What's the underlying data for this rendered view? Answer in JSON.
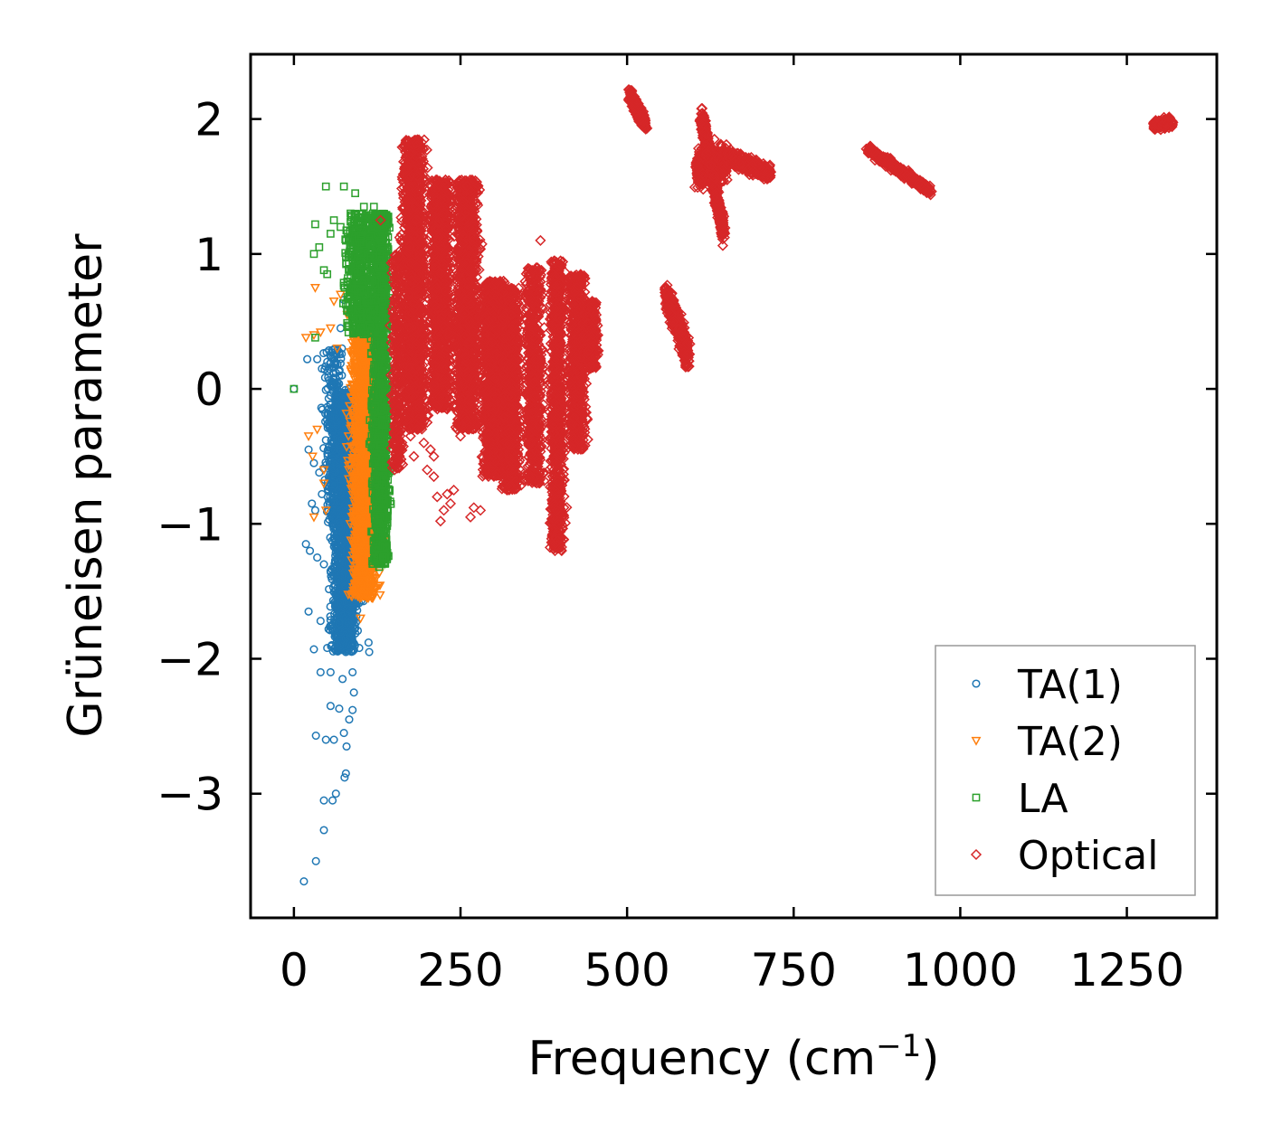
{
  "chart_data": {
    "type": "scatter",
    "title": "",
    "xlabel_main": "Frequency (cm",
    "xlabel_sup": "−1",
    "xlabel_end": ")",
    "ylabel": "Grüneisen parameter",
    "xlim": [
      -65,
      1385
    ],
    "ylim": [
      -3.92,
      2.48
    ],
    "x_ticks": [
      0,
      250,
      500,
      750,
      1000,
      1250
    ],
    "x_tick_labels": [
      "0",
      "250",
      "500",
      "750",
      "1000",
      "1250"
    ],
    "y_ticks": [
      -3,
      -2,
      -1,
      0,
      1,
      2
    ],
    "y_tick_labels": [
      "−3",
      "−2",
      "−1",
      "0",
      "1",
      "2"
    ],
    "legend_position": "lower-right",
    "series": [
      {
        "name": "TA(1)",
        "marker": "circle",
        "color": "#1f77b4",
        "points": [
          [
            0,
            0
          ],
          [
            15,
            -3.65
          ],
          [
            33,
            -3.5
          ],
          [
            45,
            -3.27
          ],
          [
            45,
            -3.05
          ],
          [
            63,
            -3.0
          ],
          [
            58,
            -3.05
          ],
          [
            76,
            -2.88
          ],
          [
            78,
            -2.85
          ],
          [
            33,
            -2.57
          ],
          [
            48,
            -2.6
          ],
          [
            60,
            -2.6
          ],
          [
            75,
            -2.55
          ],
          [
            79,
            -2.65
          ],
          [
            55,
            -2.35
          ],
          [
            68,
            -2.37
          ],
          [
            83,
            -2.45
          ],
          [
            88,
            -2.38
          ],
          [
            40,
            -2.1
          ],
          [
            55,
            -2.1
          ],
          [
            73,
            -2.15
          ],
          [
            88,
            -2.1
          ],
          [
            90,
            -2.25
          ],
          [
            30,
            -1.93
          ],
          [
            50,
            -1.92
          ],
          [
            65,
            -1.9
          ],
          [
            78,
            -1.95
          ],
          [
            98,
            -1.92
          ],
          [
            113,
            -1.95
          ],
          [
            22,
            -1.65
          ],
          [
            40,
            -1.72
          ],
          [
            52,
            -1.78
          ],
          [
            70,
            -1.8
          ],
          [
            112,
            -1.88
          ],
          [
            18,
            -1.15
          ],
          [
            24,
            -1.2
          ],
          [
            35,
            -1.25
          ],
          [
            45,
            -1.3
          ],
          [
            55,
            -1.35
          ],
          [
            27,
            -0.85
          ],
          [
            32,
            -0.9
          ],
          [
            38,
            -0.62
          ],
          [
            42,
            -0.78
          ],
          [
            22,
            -0.45
          ],
          [
            30,
            -0.55
          ],
          [
            48,
            -0.38
          ],
          [
            52,
            -0.15
          ],
          [
            55,
            -0.05
          ],
          [
            65,
            0.05
          ],
          [
            72,
            0.1
          ],
          [
            50,
            0.2
          ],
          [
            60,
            0.22
          ],
          [
            72,
            0.3
          ],
          [
            70,
            0.45
          ],
          [
            75,
            0.66
          ],
          [
            20,
            0.22
          ],
          [
            35,
            0.22
          ],
          [
            42,
            0.15
          ],
          [
            63,
            0.12
          ]
        ],
        "clusters": [
          {
            "x_center": 75,
            "x_spread": 28,
            "y_min": -1.95,
            "y_max": 0.0,
            "count": 1500
          },
          {
            "x_center": 90,
            "x_spread": 18,
            "y_min": -1.6,
            "y_max": -0.5,
            "count": 600
          },
          {
            "x_center": 60,
            "x_spread": 22,
            "y_min": -1.0,
            "y_max": 0.3,
            "count": 250
          }
        ]
      },
      {
        "name": "TA(2)",
        "marker": "triangle-down",
        "color": "#ff7f0e",
        "points": [
          [
            32,
            0.75
          ],
          [
            30,
            0.4
          ],
          [
            18,
            0.38
          ],
          [
            40,
            0.42
          ],
          [
            35,
            -0.3
          ],
          [
            28,
            -0.5
          ],
          [
            22,
            -0.35
          ],
          [
            45,
            -0.6
          ],
          [
            30,
            -0.95
          ],
          [
            48,
            -0.9
          ],
          [
            45,
            -0.7
          ],
          [
            60,
            0.65
          ],
          [
            70,
            0.7
          ],
          [
            80,
            0.55
          ],
          [
            65,
            0.3
          ],
          [
            55,
            0.45
          ],
          [
            90,
            0.4
          ],
          [
            100,
            0.35
          ],
          [
            110,
            0.3
          ],
          [
            115,
            -1.45
          ],
          [
            110,
            -1.55
          ],
          [
            100,
            -1.7
          ],
          [
            118,
            -1.3
          ]
        ],
        "clusters": [
          {
            "x_center": 105,
            "x_spread": 28,
            "y_min": -1.55,
            "y_max": 0.4,
            "count": 1500
          },
          {
            "x_center": 120,
            "x_spread": 18,
            "y_min": -1.2,
            "y_max": 0.3,
            "count": 600
          }
        ]
      },
      {
        "name": "LA",
        "marker": "square",
        "color": "#2ca02c",
        "points": [
          [
            0,
            0
          ],
          [
            32,
            1.22
          ],
          [
            48,
            1.5
          ],
          [
            75,
            1.5
          ],
          [
            92,
            1.45
          ],
          [
            105,
            1.35
          ],
          [
            38,
            1.05
          ],
          [
            45,
            0.88
          ],
          [
            32,
            0.38
          ],
          [
            30,
            1.0
          ],
          [
            60,
            1.25
          ],
          [
            85,
            1.3
          ],
          [
            120,
            1.35
          ],
          [
            125,
            1.2
          ],
          [
            130,
            1.1
          ],
          [
            140,
            0.98
          ],
          [
            148,
            0.95
          ],
          [
            50,
            0.85
          ],
          [
            55,
            1.15
          ],
          [
            70,
            1.2
          ],
          [
            128,
            -1.32
          ],
          [
            135,
            -1.25
          ]
        ],
        "clusters": [
          {
            "x_center": 130,
            "x_spread": 18,
            "y_min": -1.3,
            "y_max": 1.3,
            "count": 1500
          },
          {
            "x_center": 100,
            "x_spread": 32,
            "y_min": 0.4,
            "y_max": 1.3,
            "count": 500
          }
        ]
      },
      {
        "name": "Optical",
        "marker": "diamond",
        "color": "#d62728",
        "points": [
          [
            130,
            1.25
          ],
          [
            160,
            0.85
          ],
          [
            175,
            -0.35
          ],
          [
            185,
            -0.3
          ],
          [
            195,
            -0.4
          ],
          [
            205,
            -0.45
          ],
          [
            210,
            -0.65
          ],
          [
            215,
            -0.8
          ],
          [
            225,
            -0.9
          ],
          [
            230,
            -0.78
          ],
          [
            235,
            -0.85
          ],
          [
            240,
            -0.75
          ],
          [
            220,
            -0.98
          ],
          [
            250,
            -0.35
          ],
          [
            265,
            -0.95
          ],
          [
            270,
            -0.88
          ],
          [
            280,
            -0.9
          ],
          [
            370,
            1.1
          ],
          [
            180,
            -0.5
          ],
          [
            200,
            -0.6
          ],
          [
            210,
            -0.5
          ]
        ],
        "clusters": [
          {
            "x_center": 155,
            "x_spread": 12,
            "y_min": -0.6,
            "y_max": 1.0,
            "count": 300
          },
          {
            "x_center": 180,
            "x_spread": 25,
            "y_min": -0.3,
            "y_max": 1.85,
            "count": 1500
          },
          {
            "x_center": 220,
            "x_spread": 22,
            "y_min": -0.15,
            "y_max": 1.55,
            "count": 1200
          },
          {
            "x_center": 260,
            "x_spread": 25,
            "y_min": -0.3,
            "y_max": 1.55,
            "count": 1400
          },
          {
            "x_center": 300,
            "x_spread": 25,
            "y_min": -0.65,
            "y_max": 0.8,
            "count": 1200
          },
          {
            "x_center": 325,
            "x_spread": 20,
            "y_min": -0.75,
            "y_max": 0.75,
            "count": 900
          },
          {
            "x_center": 360,
            "x_spread": 18,
            "y_min": -0.7,
            "y_max": 0.9,
            "count": 700
          },
          {
            "x_center": 395,
            "x_spread": 15,
            "y_min": -1.2,
            "y_max": 0.95,
            "count": 900
          },
          {
            "x_center": 425,
            "x_spread": 18,
            "y_min": -0.45,
            "y_max": 0.85,
            "count": 700
          },
          {
            "x_center": 445,
            "x_spread": 15,
            "y_min": 0.15,
            "y_max": 0.65,
            "count": 300
          }
        ],
        "streaks": [
          {
            "x0": 505,
            "y0": 2.18,
            "x1": 528,
            "y1": 1.95,
            "width": 0.08,
            "count": 250
          },
          {
            "x0": 558,
            "y0": 0.72,
            "x1": 592,
            "y1": 0.25,
            "width": 0.16,
            "count": 400
          },
          {
            "x0": 604,
            "y0": 1.62,
            "x1": 650,
            "y1": 1.7,
            "width": 0.2,
            "count": 500
          },
          {
            "x0": 612,
            "y0": 2.02,
            "x1": 645,
            "y1": 1.15,
            "width": 0.12,
            "count": 600
          },
          {
            "x0": 650,
            "y0": 1.72,
            "x1": 715,
            "y1": 1.6,
            "width": 0.08,
            "count": 350
          },
          {
            "x0": 860,
            "y0": 1.78,
            "x1": 955,
            "y1": 1.47,
            "width": 0.05,
            "count": 400
          },
          {
            "x0": 1290,
            "y0": 1.95,
            "x1": 1318,
            "y1": 1.98,
            "width": 0.05,
            "count": 150
          }
        ]
      }
    ]
  }
}
